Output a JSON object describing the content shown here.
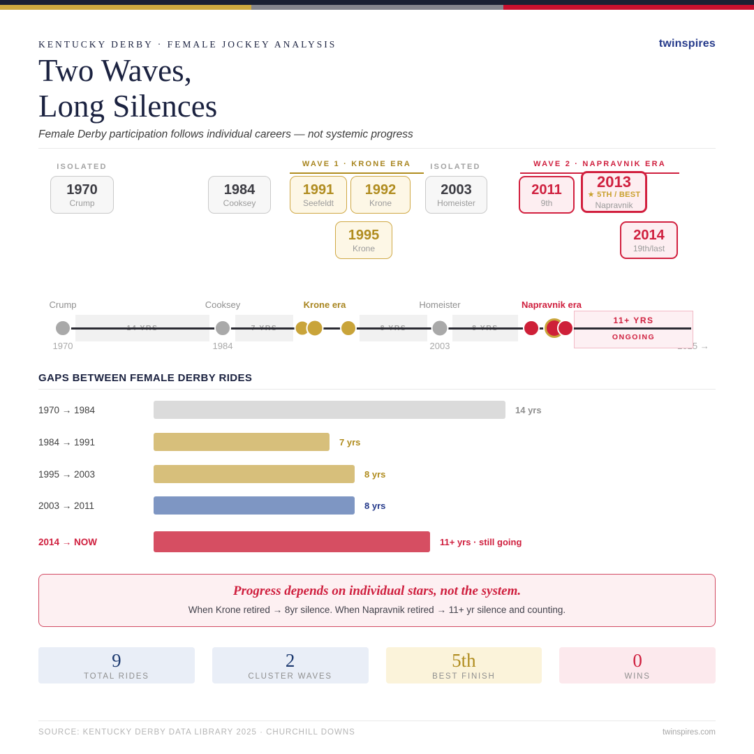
{
  "header": {
    "eyebrow": "KENTUCKY DERBY · FEMALE JOCKEY ANALYSIS",
    "brand": "twinspires",
    "title_line1": "Two Waves,",
    "title_line2": "Long Silences",
    "subtitle": "Female Derby participation follows individual careers — not systemic progress"
  },
  "clusters": {
    "isolated1": "ISOLATED",
    "wave1": "WAVE 1 · KRONE ERA",
    "isolated2": "ISOLATED",
    "wave2": "WAVE 2 · NAPRAVNIK ERA",
    "cards": [
      {
        "year": "1970",
        "sub": "Crump",
        "style": "gray"
      },
      {
        "year": "1984",
        "sub": "Cooksey",
        "style": "gray"
      },
      {
        "year": "1991",
        "sub": "Seefeldt",
        "style": "gold"
      },
      {
        "year": "1992",
        "sub": "Krone",
        "style": "gold"
      },
      {
        "year": "1995",
        "sub": "Krone",
        "style": "gold"
      },
      {
        "year": "2003",
        "sub": "Homeister",
        "style": "gray"
      },
      {
        "year": "2011",
        "sub": "9th",
        "style": "red"
      },
      {
        "year": "2013",
        "badge": "★ 5TH / BEST",
        "sub": "Napravnik",
        "style": "red-feature"
      },
      {
        "year": "2014",
        "sub": "19th/last",
        "style": "red"
      }
    ]
  },
  "timeline": {
    "start_year": 1970,
    "end_year": 2025,
    "labels": {
      "crump": "Crump",
      "cooksey": "Cooksey",
      "krone_era": "Krone era",
      "homeister": "Homeister",
      "napravnik_era": "Napravnik era"
    },
    "years": {
      "y1970": "1970",
      "y1984": "1984",
      "y2003": "2003",
      "end": "2025 →"
    },
    "gap_labels": [
      "14 YRS",
      "7 YRS",
      "8 YRS",
      "8 YRS"
    ],
    "ongoing": {
      "line1": "11+ YRS",
      "line2": "ONGOING"
    },
    "event_years": [
      1970,
      1984,
      1991,
      1992,
      1995,
      2003,
      2011,
      2013,
      2014
    ],
    "highlight_year": 2013
  },
  "gaps": {
    "heading": "GAPS BETWEEN FEMALE DERBY RIDES"
  },
  "chart_data": {
    "type": "bar",
    "orientation": "horizontal",
    "title": "GAPS BETWEEN FEMALE DERBY RIDES",
    "categories": [
      "1970 → 1984",
      "1984 → 1991",
      "1995 → 2003",
      "2003 → 2011",
      "2014 → NOW"
    ],
    "values": [
      14,
      7,
      8,
      8,
      11
    ],
    "unit": "years",
    "value_labels": [
      "14 yrs",
      "7 yrs",
      "8 yrs",
      "8 yrs",
      "11+ yrs · still going"
    ],
    "colors": [
      "#dbdbdb",
      "#d7bf7b",
      "#d7bf7b",
      "#7e96c3",
      "#d64e62"
    ],
    "xlim": [
      0,
      14
    ],
    "note": "last bar is open-ended: 11+ years and ongoing"
  },
  "callout": {
    "headline": "Progress depends on individual stars, not the system.",
    "body": "When Krone retired → 8yr silence. When Napravnik retired → 11+ yr silence and counting."
  },
  "stats": [
    {
      "value": "9",
      "label": "TOTAL RIDES"
    },
    {
      "value": "2",
      "label": "CLUSTER WAVES"
    },
    {
      "value": "5th",
      "label": "BEST FINISH"
    },
    {
      "value": "0",
      "label": "WINS"
    }
  ],
  "footer": {
    "source": "SOURCE: KENTUCKY DERBY DATA LIBRARY 2025 · CHURCHILL DOWNS",
    "site": "twinspires.com"
  },
  "colors": {
    "navy": "#1b2240",
    "gold": "#b08c1e",
    "crimson": "#cf1f3e",
    "brand_blue": "#24398a"
  }
}
